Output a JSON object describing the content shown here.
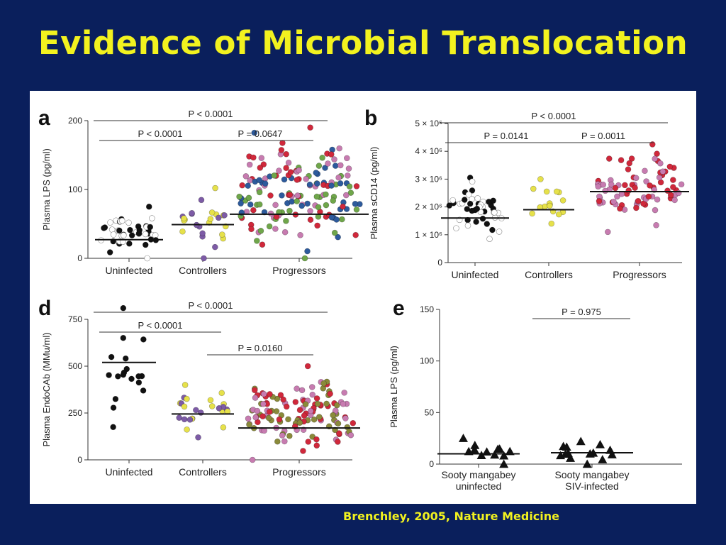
{
  "slide": {
    "title": "Evidence of Microbial Translocation",
    "citation": "Brenchley, 2005, Nature Medicine"
  },
  "colors": {
    "background": "#0a1f5c",
    "title": "#f2f21f",
    "uninfected_open": "#ffffff",
    "uninfected_filled": "#111111",
    "controllers_yellow": "#e6e14a",
    "controllers_purple": "#7d5ba6",
    "progressors_red": "#d0283b",
    "progressors_green": "#6fa64a",
    "progressors_blue": "#2d5a9c",
    "progressors_pink": "#c77bb0",
    "progressors_olive": "#8a8a3a"
  },
  "chart_data": [
    {
      "panel": "a",
      "type": "scatter",
      "ylabel": "Plasma LPS (pg/ml)",
      "ylim": [
        0,
        200
      ],
      "yticks": [
        "0",
        "100",
        "200"
      ],
      "categories": [
        "Uninfected",
        "Controllers",
        "Progressors"
      ],
      "medians": [
        27,
        49,
        64
      ],
      "groups": [
        {
          "name": "Uninfected",
          "n": 45,
          "range": [
            0,
            75
          ],
          "colors": [
            "uninfected_filled",
            "uninfected_open"
          ]
        },
        {
          "name": "Controllers",
          "n": 25,
          "range": [
            0,
            102
          ],
          "colors": [
            "controllers_yellow",
            "controllers_purple"
          ]
        },
        {
          "name": "Progressors",
          "n": 160,
          "range": [
            0,
            190
          ],
          "colors": [
            "progressors_red",
            "progressors_green",
            "progressors_blue",
            "progressors_pink"
          ]
        }
      ],
      "comparisons": [
        {
          "label": "P < 0.0001",
          "from": 0,
          "to": 2
        },
        {
          "label": "P < 0.0001",
          "from": 0,
          "to": 1
        },
        {
          "label": "P = 0.0647",
          "from": 1,
          "to": 2
        }
      ]
    },
    {
      "panel": "b",
      "type": "scatter",
      "ylabel": "Plasma sCD14 (pg/ml)",
      "ylim": [
        0,
        5000000
      ],
      "yticks": [
        "0",
        "1 × 10⁶",
        "2 × 10⁶",
        "3 × 10⁶",
        "4 × 10⁶",
        "5 × 10⁶"
      ],
      "categories": [
        "Uninfected",
        "Controllers",
        "Progressors"
      ],
      "medians": [
        1600000,
        1900000,
        2550000
      ],
      "groups": [
        {
          "name": "Uninfected",
          "n": 45,
          "range": [
            850000,
            3050000
          ],
          "colors": [
            "uninfected_filled",
            "uninfected_open"
          ]
        },
        {
          "name": "Controllers",
          "n": 16,
          "range": [
            1400000,
            3000000
          ],
          "colors": [
            "controllers_yellow"
          ]
        },
        {
          "name": "Progressors",
          "n": 80,
          "range": [
            1100000,
            4250000
          ],
          "colors": [
            "progressors_red",
            "progressors_pink"
          ]
        }
      ],
      "comparisons": [
        {
          "label": "P < 0.0001",
          "from": 0,
          "to": 2
        },
        {
          "label": "P = 0.0141",
          "from": 0,
          "to": 1
        },
        {
          "label": "P = 0.0011",
          "from": 1,
          "to": 2
        }
      ]
    },
    {
      "panel": "d",
      "type": "scatter",
      "ylabel": "Plasma EndoCAb (MMu/ml)",
      "ylim": [
        0,
        750
      ],
      "yticks": [
        "0",
        "250",
        "500",
        "750"
      ],
      "categories": [
        "Uninfected",
        "Controllers",
        "Progressors"
      ],
      "medians": [
        520,
        245,
        170
      ],
      "groups": [
        {
          "name": "Uninfected",
          "n": 18,
          "range": [
            175,
            810
          ],
          "colors": [
            "uninfected_filled"
          ]
        },
        {
          "name": "Controllers",
          "n": 25,
          "range": [
            120,
            400
          ],
          "colors": [
            "controllers_yellow",
            "controllers_purple"
          ]
        },
        {
          "name": "Progressors",
          "n": 130,
          "range": [
            0,
            500
          ],
          "colors": [
            "progressors_red",
            "progressors_pink",
            "progressors_olive"
          ]
        }
      ],
      "comparisons": [
        {
          "label": "P < 0.0001",
          "from": 0,
          "to": 2
        },
        {
          "label": "P < 0.0001",
          "from": 0,
          "to": 1
        },
        {
          "label": "P = 0.0160",
          "from": 1,
          "to": 2
        }
      ]
    },
    {
      "panel": "e",
      "type": "scatter",
      "ylabel": "Plasma LPS (pg/ml)",
      "ylim": [
        0,
        150
      ],
      "yticks": [
        "0",
        "50",
        "100",
        "150"
      ],
      "categories": [
        "Sooty mangabey uninfected",
        "Sooty mangabey SIV-infected"
      ],
      "category_lines": [
        [
          "Sooty mangabey",
          "uninfected"
        ],
        [
          "Sooty mangabey",
          "SIV-infected"
        ]
      ],
      "medians": [
        10,
        11
      ],
      "groups": [
        {
          "name": "Sooty mangabey uninfected",
          "n": 12,
          "range": [
            0,
            25
          ],
          "colors": [
            "uninfected_filled"
          ],
          "marker": "triangle"
        },
        {
          "name": "Sooty mangabey SIV-infected",
          "n": 14,
          "range": [
            0,
            22
          ],
          "colors": [
            "uninfected_filled"
          ],
          "marker": "triangle"
        }
      ],
      "comparisons": [
        {
          "label": "P = 0.975",
          "from": 0,
          "to": 1
        }
      ]
    }
  ]
}
